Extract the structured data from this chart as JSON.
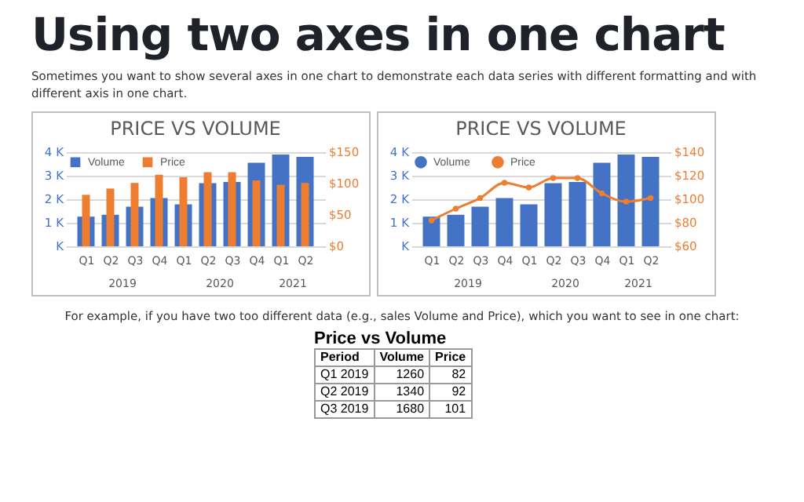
{
  "chart_data": [
    {
      "type": "other",
      "title": "Using two axes in one chart",
      "annotations": [
        "Sometimes you want to show several axes in one chart to demonstrate each data series with different formatting and with different axis in one chart."
      ]
    },
    {
      "type": "bar",
      "title": "PRICE VS VOLUME",
      "categories": [
        "Q1",
        "Q2",
        "Q3",
        "Q4",
        "Q1",
        "Q2",
        "Q3",
        "Q4",
        "Q1",
        "Q2"
      ],
      "series": [
        {
          "name": "Volume",
          "color": "#4472c4",
          "values": [
            1260,
            1340,
            1680,
            2050,
            1780,
            2680,
            2730,
            3550,
            3900,
            3800
          ]
        },
        {
          "name": "Price",
          "color": "#ed7d31",
          "axis": "y2",
          "values": [
            82,
            92,
            101,
            114,
            110,
            118,
            118,
            105,
            98,
            101
          ]
        }
      ],
      "ylim": [
        0,
        4000
      ],
      "yticks": [
        {
          "value": 0,
          "label": "K"
        },
        {
          "value": 1000,
          "label": "1 K"
        },
        {
          "value": 2000,
          "label": "2 K"
        },
        {
          "value": 3000,
          "label": "3 K"
        },
        {
          "value": 4000,
          "label": "4 K"
        }
      ],
      "y2lim": [
        0,
        150
      ],
      "y2ticks": [
        {
          "value": 0,
          "label": "$0"
        },
        {
          "value": 50,
          "label": "$50"
        },
        {
          "value": 100,
          "label": "$100"
        },
        {
          "value": 150,
          "label": "$150"
        }
      ],
      "annotations": [
        "2019",
        "2020",
        "2021"
      ],
      "grid": "y",
      "legend": "top left"
    },
    {
      "type": "bar",
      "title": "PRICE VS VOLUME",
      "categories": [
        "Q1",
        "Q2",
        "Q3",
        "Q4",
        "Q1",
        "Q2",
        "Q3",
        "Q4",
        "Q1",
        "Q2"
      ],
      "series": [
        {
          "name": "Volume",
          "color": "#4472c4",
          "values": [
            1260,
            1340,
            1680,
            2050,
            1780,
            2680,
            2730,
            3550,
            3900,
            3800
          ]
        },
        {
          "name": "Price",
          "color": "#ed7d31",
          "axis": "y2",
          "type": "line",
          "marker": "circle",
          "values": [
            82,
            92,
            101,
            114,
            110,
            118,
            118,
            105,
            98,
            101
          ]
        }
      ],
      "ylim": [
        0,
        4000
      ],
      "yticks": [
        {
          "value": 0,
          "label": "K"
        },
        {
          "value": 1000,
          "label": "1 K"
        },
        {
          "value": 2000,
          "label": "2 K"
        },
        {
          "value": 3000,
          "label": "3 K"
        },
        {
          "value": 4000,
          "label": "4 K"
        }
      ],
      "y2lim": [
        60,
        140
      ],
      "y2ticks": [
        {
          "value": 60,
          "label": "$60"
        },
        {
          "value": 80,
          "label": "$80"
        },
        {
          "value": 100,
          "label": "$100"
        },
        {
          "value": 120,
          "label": "$120"
        },
        {
          "value": 140,
          "label": "$140"
        }
      ],
      "annotations": [
        "2019",
        "2020",
        "2021"
      ],
      "grid": "y",
      "legend": "top left"
    },
    {
      "type": "other",
      "title": "Price vs Volume",
      "annotations": [
        "For example, if you have two too different data (e.g., sales Volume and Price), which you want to see in one chart:",
        "Period",
        "Volume",
        "Price",
        "Q1 2019",
        "1260",
        "82",
        "Q2 2019",
        "1340",
        "92",
        "Q3 2019",
        "1680",
        "101"
      ]
    }
  ]
}
